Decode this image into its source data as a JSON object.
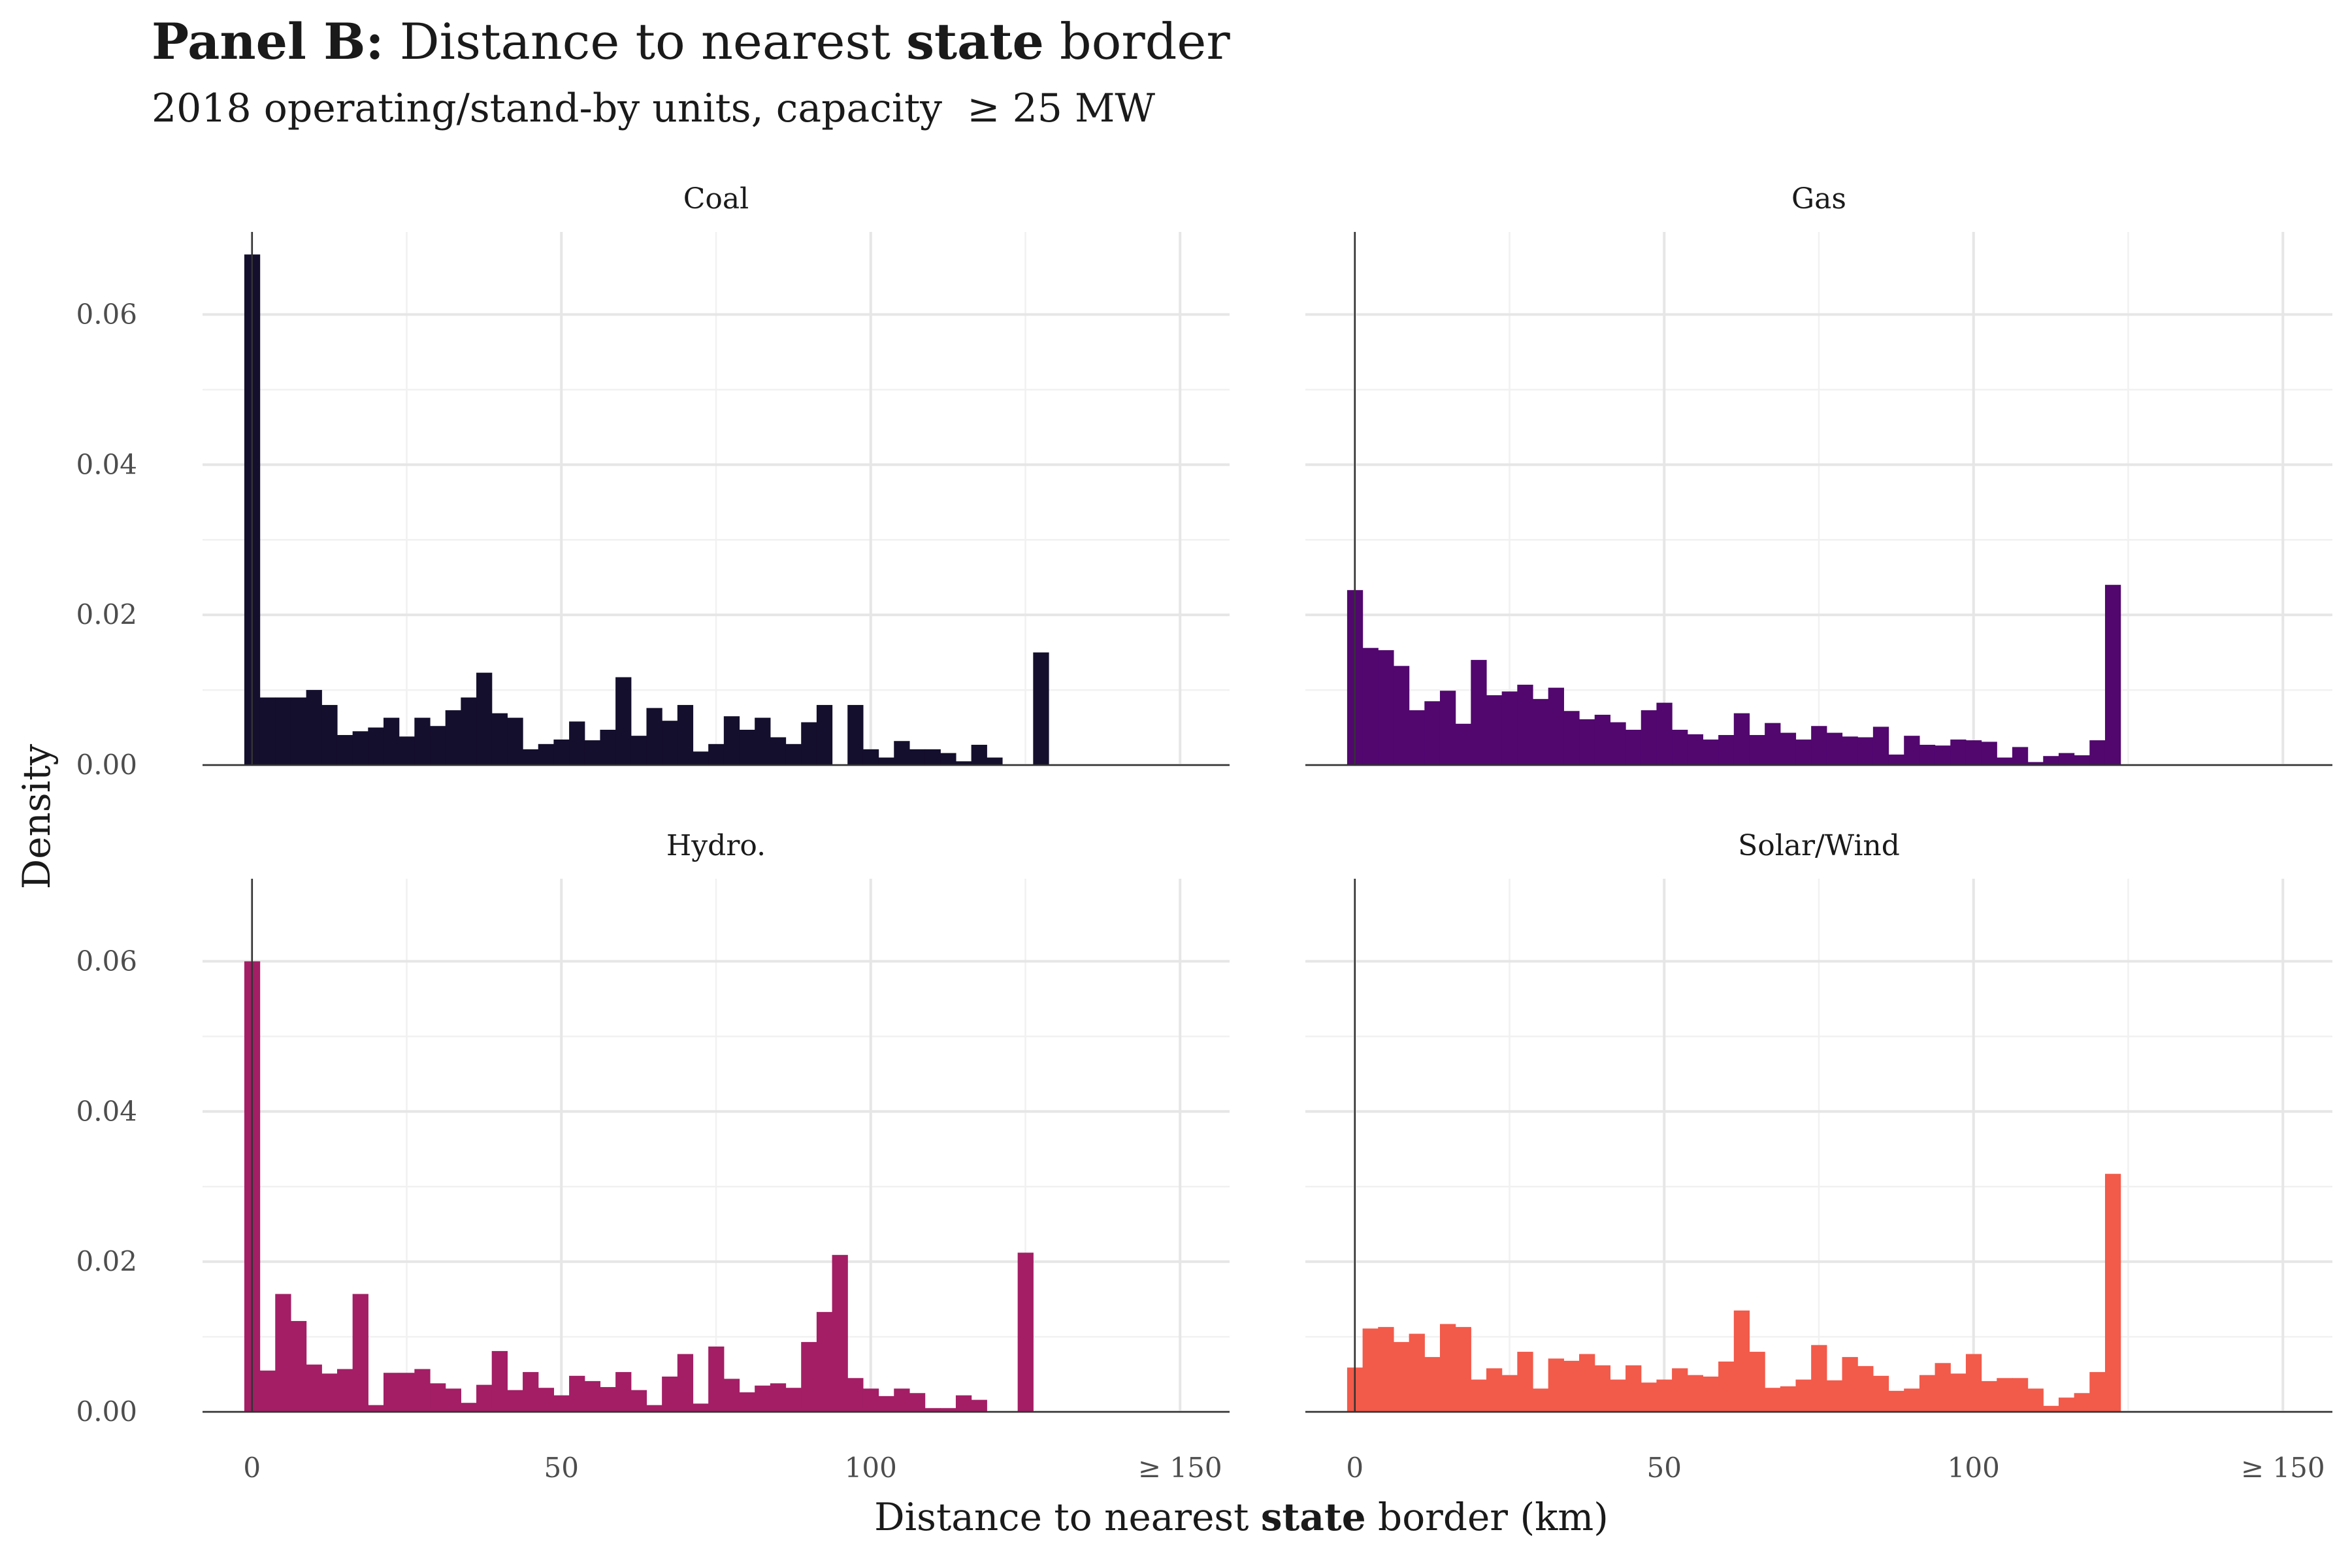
{
  "title": {
    "bold_prefix": "Panel B:",
    "text_1": " Distance to nearest ",
    "bold_word": "state",
    "text_2": " border"
  },
  "subtitle": "2018 operating/stand-by units, capacity  ≥ 25 MW",
  "x_axis_title": {
    "before": "Distance to nearest ",
    "bold": "state",
    "after": " border (km)"
  },
  "y_axis_title": "Density",
  "colors": {
    "Coal": "#140f2d",
    "Gas": "#51076e",
    "Hydro.": "#a31e65",
    "Solar/Wind": "#f25a4a",
    "grid_major": "#e6e6e6",
    "grid_minor": "#f1f1f1",
    "axis": "#333333"
  },
  "chart_data": {
    "type": "bar",
    "layout": "facet 2x2",
    "x_ticks": [
      "0",
      "50",
      "100",
      "≥ 150"
    ],
    "x_tick_values": [
      0,
      50,
      100,
      150
    ],
    "y_ticks": [
      "0.00",
      "0.02",
      "0.04",
      "0.06"
    ],
    "y_tick_values": [
      0,
      0.02,
      0.04,
      0.06
    ],
    "xlim": [
      -8,
      158
    ],
    "ylim": [
      0,
      0.071
    ],
    "bin_width": 2.5,
    "bin_start": -1.25,
    "grid": true,
    "panels": [
      {
        "name": "Coal",
        "values": [
          0.068,
          0.009,
          0.009,
          0.009,
          0.01,
          0.008,
          0.004,
          0.0045,
          0.005,
          0.0063,
          0.0038,
          0.0063,
          0.0052,
          0.0073,
          0.009,
          0.0123,
          0.0069,
          0.0063,
          0.0021,
          0.0028,
          0.0034,
          0.0058,
          0.0033,
          0.0047,
          0.0117,
          0.0039,
          0.0076,
          0.0059,
          0.008,
          0.0018,
          0.0028,
          0.0065,
          0.0047,
          0.0063,
          0.0037,
          0.0028,
          0.0057,
          0.008,
          0,
          0.008,
          0.0021,
          0.001,
          0.0032,
          0.0021,
          0.0021,
          0.0016,
          0.0005,
          0.0027,
          0.001,
          0,
          0,
          0.015
        ]
      },
      {
        "name": "Gas",
        "values": [
          0.0233,
          0.0156,
          0.0153,
          0.0132,
          0.0073,
          0.0085,
          0.0099,
          0.0055,
          0.014,
          0.0093,
          0.0098,
          0.0107,
          0.0088,
          0.0103,
          0.0072,
          0.0061,
          0.0067,
          0.0057,
          0.0047,
          0.0073,
          0.0083,
          0.0047,
          0.0041,
          0.0034,
          0.004,
          0.0069,
          0.004,
          0.0056,
          0.0043,
          0.0034,
          0.0052,
          0.0043,
          0.0038,
          0.0037,
          0.0051,
          0.0014,
          0.0039,
          0.0027,
          0.0026,
          0.0034,
          0.0033,
          0.0031,
          0.001,
          0.0024,
          0.0004,
          0.0012,
          0.0016,
          0.0013,
          0.0033,
          0.024
        ]
      },
      {
        "name": "Hydro.",
        "values": [
          0.06,
          0.0055,
          0.0157,
          0.0121,
          0.0063,
          0.0051,
          0.0057,
          0.0157,
          0.0009,
          0.0052,
          0.0052,
          0.0057,
          0.0038,
          0.0031,
          0.0012,
          0.0036,
          0.0081,
          0.0029,
          0.0053,
          0.0032,
          0.0022,
          0.0048,
          0.0041,
          0.0033,
          0.0053,
          0.0029,
          0.0009,
          0.0047,
          0.0077,
          0.0011,
          0.0087,
          0.0044,
          0.0026,
          0.0035,
          0.0038,
          0.0032,
          0.0093,
          0.0133,
          0.0209,
          0.0045,
          0.0031,
          0.0021,
          0.0031,
          0.0025,
          0.0005,
          0.0005,
          0.0022,
          0.0016,
          0,
          0,
          0.0212
        ]
      },
      {
        "name": "Solar/Wind",
        "values": [
          0.0059,
          0.0111,
          0.0113,
          0.0093,
          0.0104,
          0.0073,
          0.0117,
          0.0113,
          0.0043,
          0.0058,
          0.0049,
          0.008,
          0.0031,
          0.0071,
          0.0068,
          0.0077,
          0.0062,
          0.0043,
          0.0062,
          0.0039,
          0.0043,
          0.0058,
          0.0049,
          0.0047,
          0.0067,
          0.0135,
          0.008,
          0.0032,
          0.0034,
          0.0043,
          0.0089,
          0.0042,
          0.0073,
          0.0061,
          0.0048,
          0.0028,
          0.0031,
          0.0049,
          0.0065,
          0.0051,
          0.0077,
          0.0041,
          0.0045,
          0.0045,
          0.0031,
          0.0008,
          0.0019,
          0.0025,
          0.0053,
          0.0317
        ]
      }
    ]
  }
}
